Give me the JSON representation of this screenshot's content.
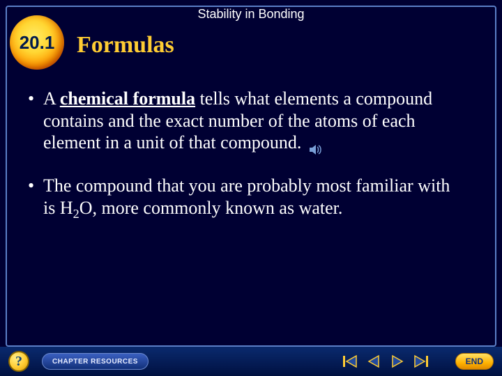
{
  "chapter_title": "Stability in Bonding",
  "section_number": "20.1",
  "slide_title": "Formulas",
  "bullets": [
    {
      "pre": "A ",
      "keyword": "chemical formula",
      "post": " tells what elements a compound contains and the exact number of the atoms of each element in a unit of that compound.",
      "has_audio": true
    },
    {
      "html": "The compound that you are probably most familiar with is H<span class=\"sub\">2</span>O, more commonly known as water."
    }
  ],
  "footer": {
    "help": "?",
    "resources": "CHAPTER RESOURCES",
    "end": "END"
  },
  "colors": {
    "background": "#000033",
    "border": "#5b7fc7",
    "title": "#ffcc33",
    "body_text": "#ffffff",
    "badge_gradient": [
      "#ffec66",
      "#ffd633",
      "#ff9900",
      "#cc3300"
    ],
    "badge_text": "#001a4d",
    "footer_gradient": [
      "#0a2a6e",
      "#001040"
    ],
    "nav_arrow_fill": "#224a9e",
    "nav_arrow_stroke": "#ffcc33"
  },
  "typography": {
    "chapter_title_fontsize": 18,
    "section_number_fontsize": 26,
    "slide_title_fontsize": 34,
    "body_fontsize": 26,
    "body_font": "Times New Roman"
  }
}
